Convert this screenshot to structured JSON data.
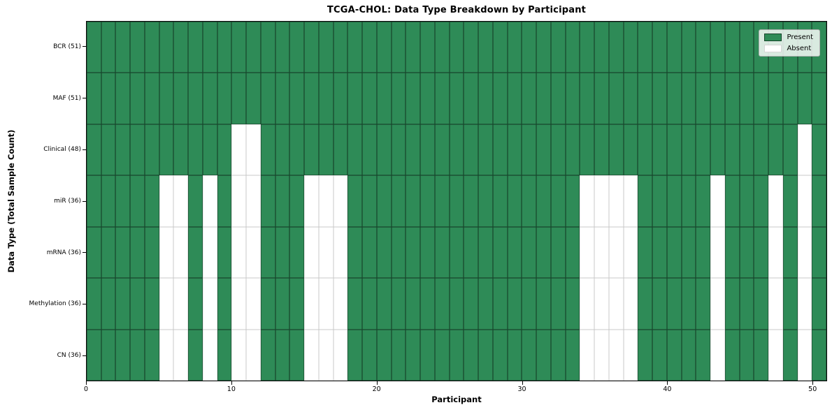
{
  "chart_data": {
    "type": "heatmap",
    "title": "TCGA-CHOL: Data Type Breakdown by Participant",
    "xlabel": "Participant",
    "ylabel": "Data Type (Total Sample Count)",
    "n_participants": 51,
    "xlim": [
      0,
      51
    ],
    "x_ticks": [
      0,
      10,
      20,
      30,
      40,
      50
    ],
    "grid": true,
    "rows": [
      {
        "label": "BCR (51)",
        "name": "BCR",
        "present_count": 51,
        "absent_participants": []
      },
      {
        "label": "MAF (51)",
        "name": "MAF",
        "present_count": 51,
        "absent_participants": []
      },
      {
        "label": "Clinical (48)",
        "name": "Clinical",
        "present_count": 48,
        "absent_participants": [
          10,
          11,
          49
        ]
      },
      {
        "label": "miR (36)",
        "name": "miR",
        "present_count": 36,
        "absent_participants": [
          5,
          6,
          8,
          10,
          11,
          15,
          16,
          17,
          34,
          35,
          36,
          37,
          43,
          47,
          49
        ]
      },
      {
        "label": "mRNA (36)",
        "name": "mRNA",
        "present_count": 36,
        "absent_participants": [
          5,
          6,
          8,
          10,
          11,
          15,
          16,
          17,
          34,
          35,
          36,
          37,
          43,
          47,
          49
        ]
      },
      {
        "label": "Methylation (36)",
        "name": "Methylation",
        "present_count": 36,
        "absent_participants": [
          5,
          6,
          8,
          10,
          11,
          15,
          16,
          17,
          34,
          35,
          36,
          37,
          43,
          47,
          49
        ]
      },
      {
        "label": "CN (36)",
        "name": "CN",
        "present_count": 36,
        "absent_participants": [
          5,
          6,
          8,
          10,
          11,
          15,
          16,
          17,
          34,
          35,
          36,
          37,
          43,
          47,
          49
        ]
      }
    ],
    "legend": {
      "position": "upper right",
      "items": [
        {
          "label": "Present",
          "color": "#2E8B57",
          "edge": "rgba(0,0,0,0.5)"
        },
        {
          "label": "Absent",
          "color": "#ffffff",
          "edge": "#d6d6d6"
        }
      ]
    },
    "colors": {
      "present": "#2E8B57",
      "absent": "#ffffff",
      "grid_on_present": "rgba(0,0,0,0.5)",
      "grid_on_absent": "#c9c9c9",
      "plot_border": "#0a0a0a",
      "figure_background": "#ffffff"
    }
  }
}
